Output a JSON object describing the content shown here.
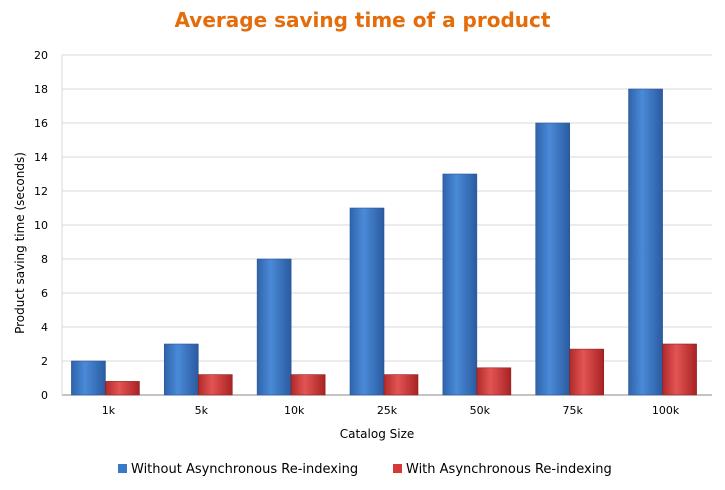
{
  "chart_data": {
    "type": "bar",
    "title": "Average saving time of a product",
    "xlabel": "Catalog Size",
    "ylabel": "Product saving time (seconds)",
    "categories": [
      "1k",
      "5k",
      "10k",
      "25k",
      "50k",
      "75k",
      "100k"
    ],
    "ylim": [
      0,
      20
    ],
    "yticks": [
      0,
      2,
      4,
      6,
      8,
      10,
      12,
      14,
      16,
      18,
      20
    ],
    "grid": true,
    "legend": "bottom",
    "series": [
      {
        "name": "Without Asynchronous Re-indexing",
        "values": [
          2,
          3,
          8,
          11,
          13,
          16,
          18
        ],
        "color": "#3a78c9"
      },
      {
        "name": "With Asynchronous Re-indexing",
        "values": [
          0.8,
          1.2,
          1.2,
          1.2,
          1.6,
          2.7,
          3
        ],
        "color": "#d33a3a"
      }
    ]
  }
}
